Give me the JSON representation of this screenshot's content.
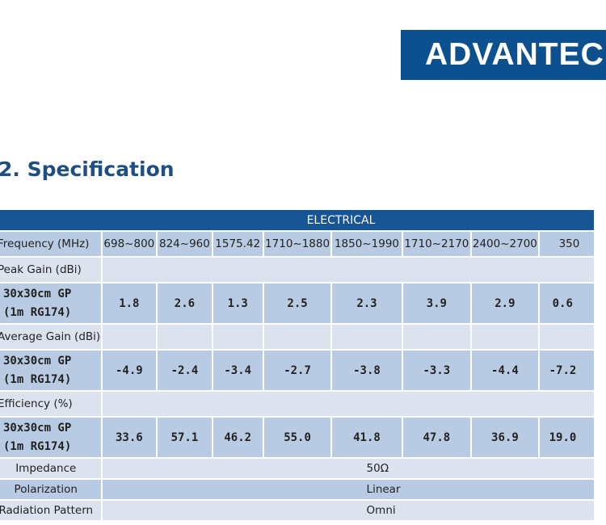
{
  "logo": {
    "text": "ADVANTECH",
    "color": "#0c5090"
  },
  "title": "2. Specification",
  "table": {
    "section": "ELECTRICAL",
    "frequency_label": "Frequency (MHz)",
    "frequencies": [
      "698~800",
      "824~960",
      "1575.42",
      "1710~1880",
      "1850~1990",
      "1710~2170",
      "2400~2700",
      "350"
    ],
    "peak_gain": {
      "label": "Peak Gain (dBi)",
      "row_label_1": "30x30cm GP",
      "row_label_2": "(1m RG174)",
      "values": [
        "1.8",
        "2.6",
        "1.3",
        "2.5",
        "2.3",
        "3.9",
        "2.9",
        "0.6"
      ]
    },
    "average_gain": {
      "label": "Average Gain (dBi)",
      "row_label_1": "30x30cm GP",
      "row_label_2": "(1m RG174)",
      "values": [
        "-4.9",
        "-2.4",
        "-3.4",
        "-2.7",
        "-3.8",
        "-3.3",
        "-4.4",
        "-7.2"
      ]
    },
    "efficiency": {
      "label": "Efficiency (%)",
      "row_label_1": "30x30cm GP",
      "row_label_2": "(1m RG174)",
      "values": [
        "33.6",
        "57.1",
        "46.2",
        "55.0",
        "41.8",
        "47.8",
        "36.9",
        "19.0"
      ]
    },
    "impedance": {
      "label": "Impedance",
      "value": "50Ω"
    },
    "polarization": {
      "label": "Polarization",
      "value": "Linear"
    },
    "radiation_pattern": {
      "label": "Radiation Pattern",
      "value": "Omni"
    }
  },
  "colors": {
    "header": "#175595",
    "row_light": "#dce3ef",
    "row_dark": "#b9cbe2",
    "title": "#1f4f80"
  }
}
